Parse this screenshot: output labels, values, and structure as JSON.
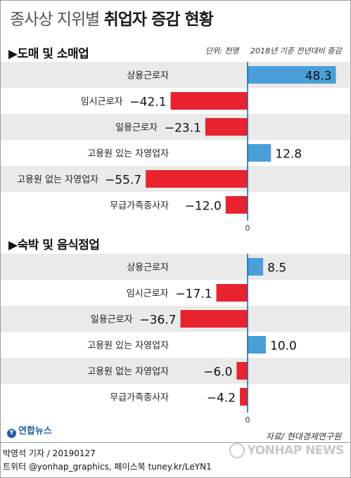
{
  "header": {
    "title_light": "종사상 지위별",
    "title_bold": "취업자 증감 현황"
  },
  "unit_label": "단위: 천명",
  "baseline_label": "2018년 기준 전년대비 증감",
  "colors": {
    "positive": "#4a9fd8",
    "negative": "#e8232e",
    "band": "#eaeaea",
    "axis": "#1a5ea8"
  },
  "chart_data": [
    {
      "type": "bar",
      "title": "▶도매 및 소매업",
      "categories": [
        "상용근로자",
        "임시근로자",
        "일용근로자",
        "고용원 있는 자영업자",
        "고용원 없는 자영업자",
        "무급가족종사자"
      ],
      "values": [
        48.3,
        -42.1,
        -23.1,
        12.8,
        -55.7,
        -12.0
      ],
      "value_labels": [
        "48.3",
        "−42.1",
        "−23.1",
        "12.8",
        "−55.7",
        "−12.0"
      ],
      "zero_label": "0"
    },
    {
      "type": "bar",
      "title": "▶숙박 및 음식점업",
      "categories": [
        "상용근로자",
        "임시근로자",
        "일용근로자",
        "고용원 있는 자영업자",
        "고용원 없는 자영업자",
        "무급가족종사자"
      ],
      "values": [
        8.5,
        -17.1,
        -36.7,
        10.0,
        -6.0,
        -4.2
      ],
      "value_labels": [
        "8.5",
        "−17.1",
        "−36.7",
        "10.0",
        "−6.0",
        "−4.2"
      ],
      "zero_label": "0"
    }
  ],
  "footer": {
    "source": "자료/ 현대경제연구원",
    "logo": "연합뉴스",
    "logo_mark": "Y",
    "credit_line1": "박영석 기자 / 20190127",
    "credit_line2": "트위터 @yonhap_graphics, 페이스북 tuney.kr/LeYN1",
    "watermark": "YONHAP NEWS"
  }
}
